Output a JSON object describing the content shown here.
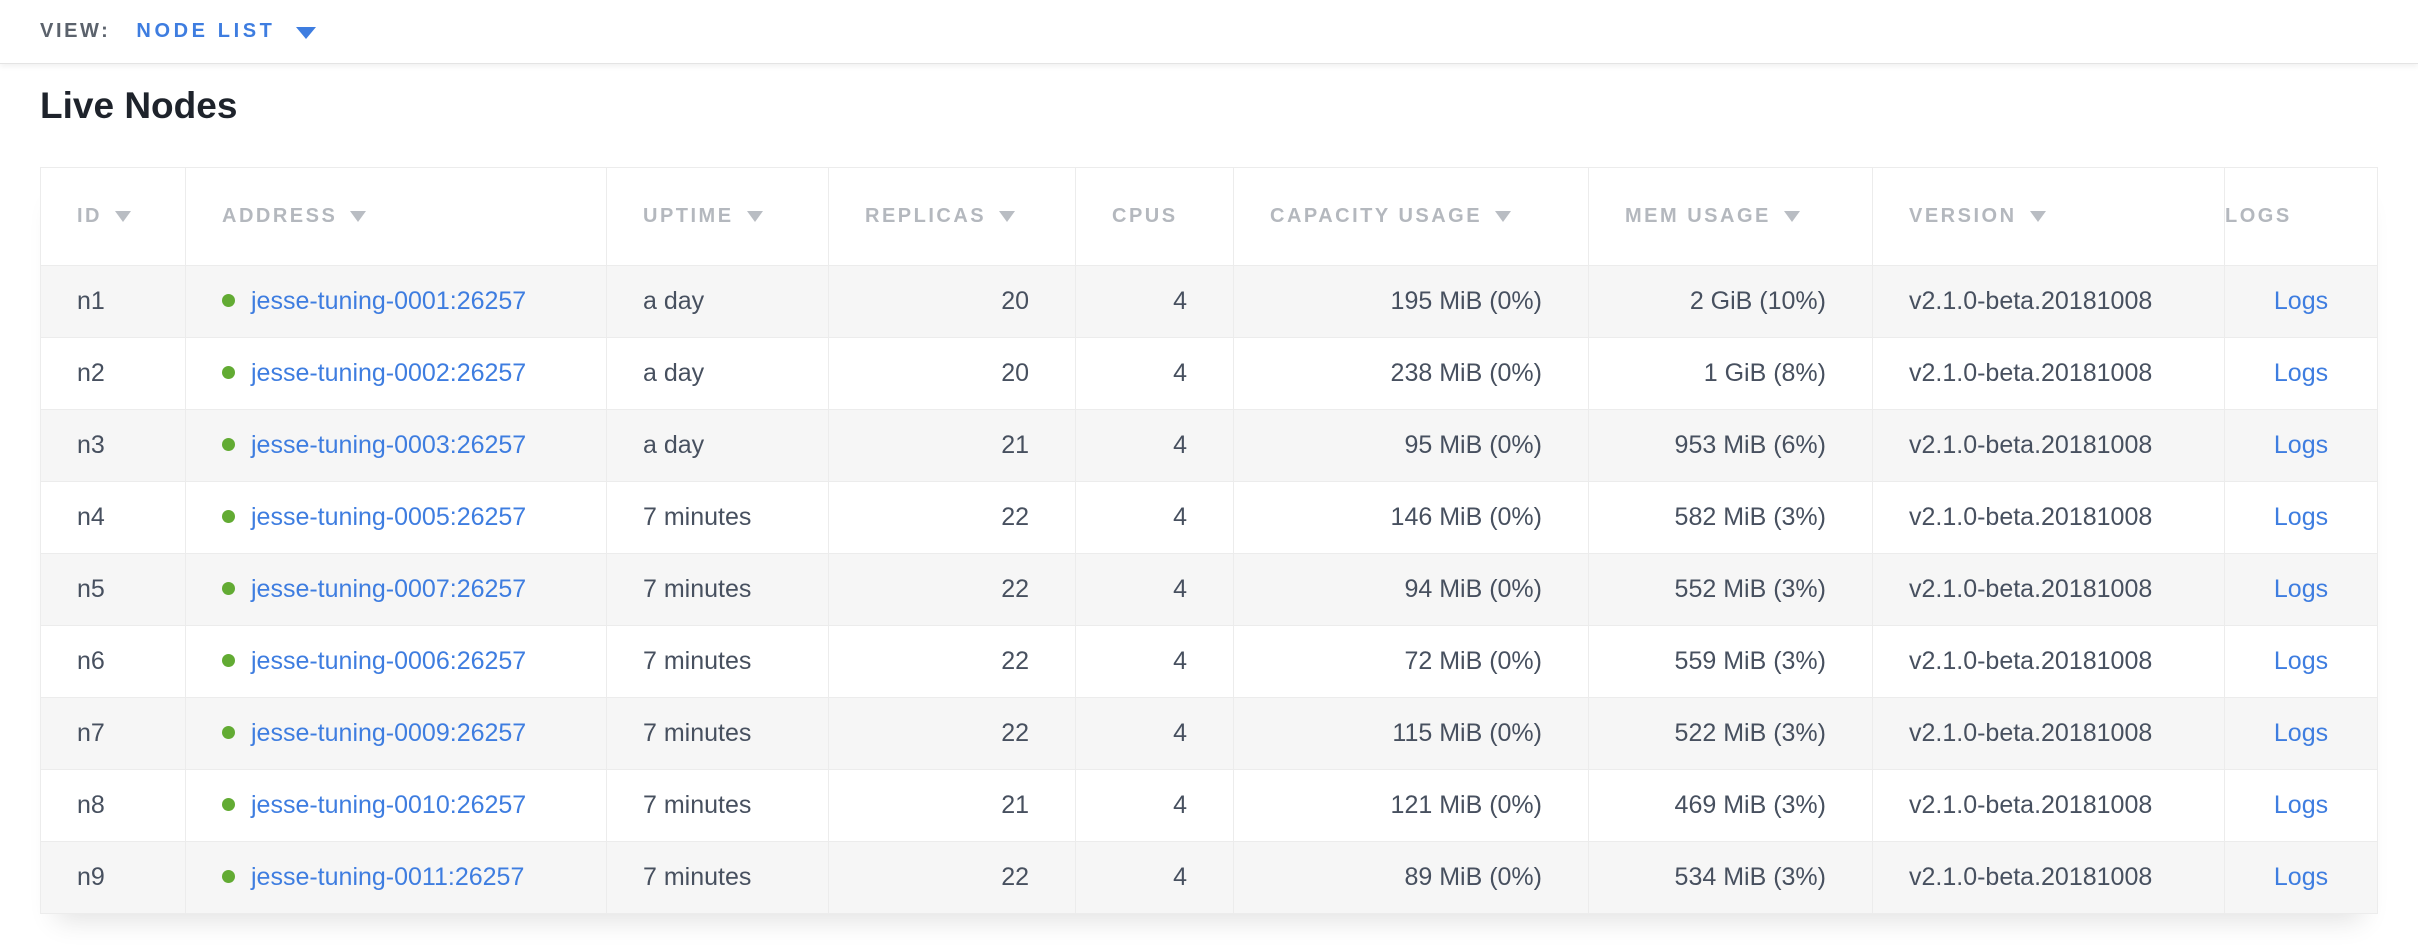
{
  "view_bar": {
    "label": "VIEW:",
    "selected": "NODE LIST"
  },
  "page": {
    "title": "Live Nodes"
  },
  "icons": {
    "chevron_down": "▼",
    "sort_desc": "▼",
    "status_dot": "●"
  },
  "colors": {
    "accent_blue": "#3e7de0",
    "status_green": "#62ab33",
    "header_text": "#b4b8be",
    "body_text": "#47505f",
    "row_stripe": "#f6f6f6",
    "border": "#ececec"
  },
  "table": {
    "columns": [
      {
        "key": "id",
        "label": "ID",
        "sortable": true,
        "align": "left"
      },
      {
        "key": "address",
        "label": "ADDRESS",
        "sortable": true,
        "align": "left"
      },
      {
        "key": "uptime",
        "label": "UPTIME",
        "sortable": true,
        "align": "left"
      },
      {
        "key": "replicas",
        "label": "REPLICAS",
        "sortable": true,
        "align": "right"
      },
      {
        "key": "cpus",
        "label": "CPUS",
        "sortable": false,
        "align": "right"
      },
      {
        "key": "capacity",
        "label": "CAPACITY USAGE",
        "sortable": true,
        "align": "right"
      },
      {
        "key": "mem",
        "label": "MEM USAGE",
        "sortable": true,
        "align": "right"
      },
      {
        "key": "version",
        "label": "VERSION",
        "sortable": true,
        "align": "left"
      },
      {
        "key": "logs",
        "label": "LOGS",
        "sortable": false,
        "align": "center"
      }
    ],
    "rows": [
      {
        "id": "n1",
        "status": "live",
        "address": "jesse-tuning-0001:26257",
        "uptime": "a day",
        "replicas": "20",
        "cpus": "4",
        "capacity": "195 MiB (0%)",
        "mem": "2 GiB (10%)",
        "version": "v2.1.0-beta.20181008",
        "logs": "Logs"
      },
      {
        "id": "n2",
        "status": "live",
        "address": "jesse-tuning-0002:26257",
        "uptime": "a day",
        "replicas": "20",
        "cpus": "4",
        "capacity": "238 MiB (0%)",
        "mem": "1 GiB (8%)",
        "version": "v2.1.0-beta.20181008",
        "logs": "Logs"
      },
      {
        "id": "n3",
        "status": "live",
        "address": "jesse-tuning-0003:26257",
        "uptime": "a day",
        "replicas": "21",
        "cpus": "4",
        "capacity": "95 MiB (0%)",
        "mem": "953 MiB (6%)",
        "version": "v2.1.0-beta.20181008",
        "logs": "Logs"
      },
      {
        "id": "n4",
        "status": "live",
        "address": "jesse-tuning-0005:26257",
        "uptime": "7 minutes",
        "replicas": "22",
        "cpus": "4",
        "capacity": "146 MiB (0%)",
        "mem": "582 MiB (3%)",
        "version": "v2.1.0-beta.20181008",
        "logs": "Logs"
      },
      {
        "id": "n5",
        "status": "live",
        "address": "jesse-tuning-0007:26257",
        "uptime": "7 minutes",
        "replicas": "22",
        "cpus": "4",
        "capacity": "94 MiB (0%)",
        "mem": "552 MiB (3%)",
        "version": "v2.1.0-beta.20181008",
        "logs": "Logs"
      },
      {
        "id": "n6",
        "status": "live",
        "address": "jesse-tuning-0006:26257",
        "uptime": "7 minutes",
        "replicas": "22",
        "cpus": "4",
        "capacity": "72 MiB (0%)",
        "mem": "559 MiB (3%)",
        "version": "v2.1.0-beta.20181008",
        "logs": "Logs"
      },
      {
        "id": "n7",
        "status": "live",
        "address": "jesse-tuning-0009:26257",
        "uptime": "7 minutes",
        "replicas": "22",
        "cpus": "4",
        "capacity": "115 MiB (0%)",
        "mem": "522 MiB (3%)",
        "version": "v2.1.0-beta.20181008",
        "logs": "Logs"
      },
      {
        "id": "n8",
        "status": "live",
        "address": "jesse-tuning-0010:26257",
        "uptime": "7 minutes",
        "replicas": "21",
        "cpus": "4",
        "capacity": "121 MiB (0%)",
        "mem": "469 MiB (3%)",
        "version": "v2.1.0-beta.20181008",
        "logs": "Logs"
      },
      {
        "id": "n9",
        "status": "live",
        "address": "jesse-tuning-0011:26257",
        "uptime": "7 minutes",
        "replicas": "22",
        "cpus": "4",
        "capacity": "89 MiB (0%)",
        "mem": "534 MiB (3%)",
        "version": "v2.1.0-beta.20181008",
        "logs": "Logs"
      }
    ]
  }
}
